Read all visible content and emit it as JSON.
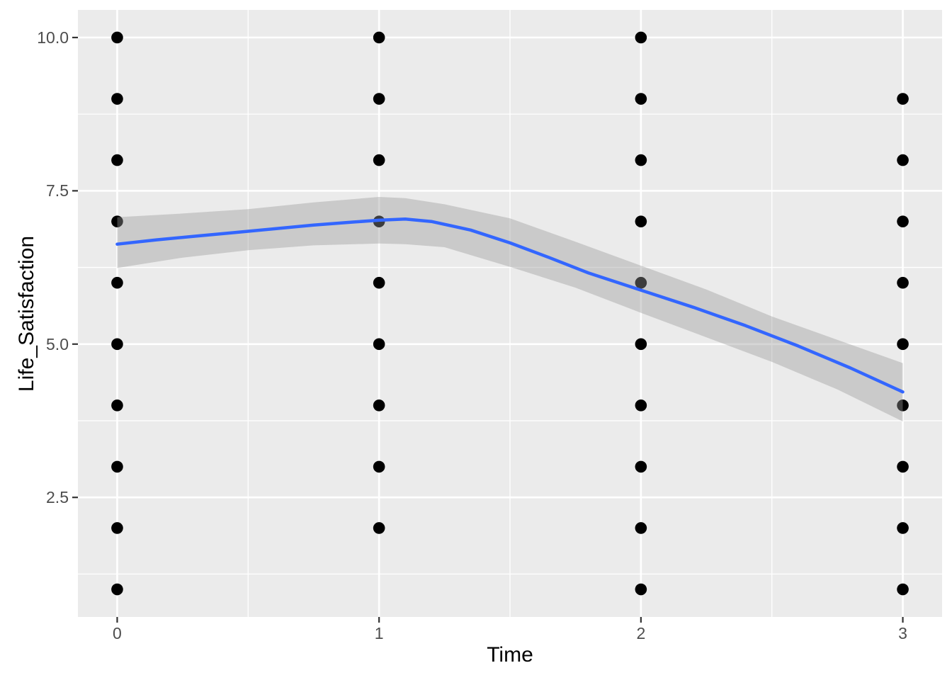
{
  "chart_data": {
    "type": "scatter",
    "title": "",
    "xlabel": "Time",
    "ylabel": "Life_Satisfaction",
    "legend": "none",
    "grid": "major-and-minor-white-on-grey",
    "xlim": [
      -0.15,
      3.15
    ],
    "ylim": [
      0.55,
      10.45
    ],
    "x_tick_values": [
      0,
      1,
      2,
      3
    ],
    "x_tick_labels": [
      "0",
      "1",
      "2",
      "3"
    ],
    "y_tick_values": [
      2.5,
      5.0,
      7.5,
      10.0
    ],
    "y_tick_labels": [
      "2.5",
      "5.0",
      "7.5",
      "10.0"
    ],
    "x_minor_gridlines": [
      0.5,
      1.5,
      2.5
    ],
    "y_minor_gridlines": [
      1.25,
      3.75,
      6.25,
      8.75
    ],
    "points": [
      {
        "x": 0,
        "y_values": [
          1,
          2,
          3,
          4,
          5,
          6,
          7,
          8,
          9,
          10
        ]
      },
      {
        "x": 1,
        "y_values": [
          2,
          3,
          4,
          5,
          6,
          7,
          8,
          9,
          10
        ]
      },
      {
        "x": 2,
        "y_values": [
          1,
          2,
          3,
          4,
          5,
          6,
          7,
          8,
          9,
          10
        ]
      },
      {
        "x": 3,
        "y_values": [
          1,
          2,
          3,
          4,
          5,
          6,
          7,
          8,
          9
        ]
      }
    ],
    "smooth_line": {
      "x": [
        0,
        0.15,
        0.3,
        0.45,
        0.6,
        0.75,
        0.9,
        1.0,
        1.1,
        1.2,
        1.35,
        1.5,
        1.65,
        1.8,
        2.0,
        2.2,
        2.4,
        2.6,
        2.8,
        3.0
      ],
      "y": [
        6.63,
        6.7,
        6.76,
        6.82,
        6.88,
        6.94,
        6.99,
        7.02,
        7.04,
        7.0,
        6.86,
        6.65,
        6.41,
        6.16,
        5.88,
        5.6,
        5.3,
        4.97,
        4.61,
        4.22
      ]
    },
    "confidence_ribbon": {
      "x": [
        0,
        0.25,
        0.5,
        0.75,
        1.0,
        1.1,
        1.25,
        1.5,
        1.75,
        2.0,
        2.25,
        2.5,
        2.75,
        3.0
      ],
      "upper": [
        7.07,
        7.13,
        7.2,
        7.31,
        7.4,
        7.38,
        7.28,
        7.05,
        6.67,
        6.28,
        5.89,
        5.45,
        5.07,
        4.69
      ],
      "lower": [
        6.24,
        6.41,
        6.53,
        6.61,
        6.64,
        6.63,
        6.58,
        6.26,
        5.92,
        5.51,
        5.11,
        4.71,
        4.26,
        3.74
      ]
    },
    "colors": {
      "figure_background": "#FFFFFF",
      "panel_background": "#EBEBEB",
      "gridline": "#FFFFFF",
      "point": "#000000",
      "smooth_line": "#3366FF",
      "ribbon_fill": "#999999",
      "ribbon_opacity": 0.4,
      "tick_mark": "#333333",
      "tick_label": "#4D4D4D",
      "axis_title": "#000000"
    }
  }
}
